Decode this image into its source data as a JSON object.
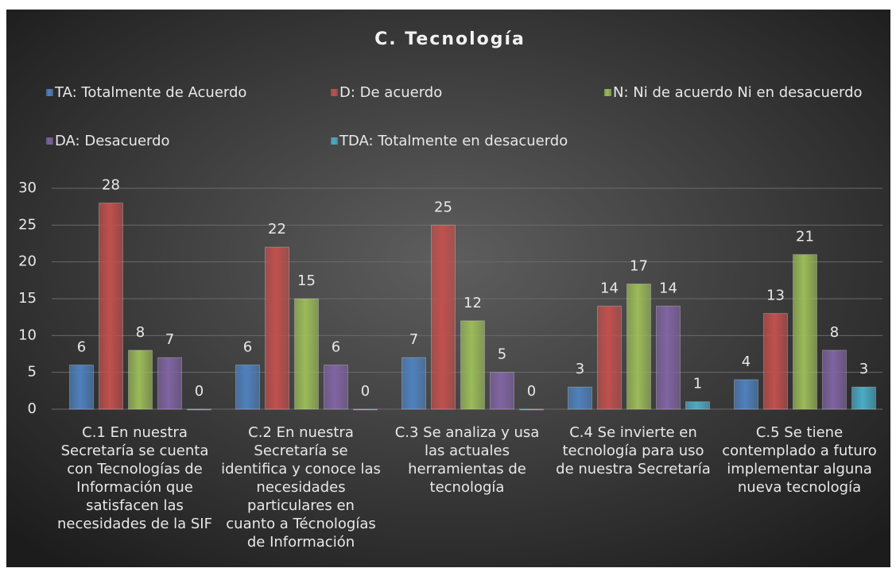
{
  "chart_data": {
    "type": "bar",
    "title": "C. Tecnología",
    "categories": [
      [
        "C.1 En nuestra",
        "Secretaría se cuenta",
        "con Tecnologías de",
        "Información que",
        "satisfacen las",
        "necesidades de la SIF"
      ],
      [
        "C.2 En nuestra",
        "Secretaría se",
        "identifica y conoce las",
        "necesidades",
        "particulares en",
        "cuanto a Técnologías",
        "de Información"
      ],
      [
        "C.3 Se analiza y usa",
        "las actuales",
        "herramientas de",
        "tecnología"
      ],
      [
        "C.4 Se invierte en",
        "tecnología para uso",
        "de nuestra Secretaría"
      ],
      [
        "C.5 Se tiene",
        "contemplado a futuro",
        "implementar alguna",
        "nueva tecnología"
      ]
    ],
    "series": [
      {
        "name": "TA: Totalmente de Acuerdo",
        "color": "#4f81bd",
        "values": [
          6,
          6,
          7,
          3,
          4
        ]
      },
      {
        "name": "D: De acuerdo",
        "color": "#c0504d",
        "values": [
          28,
          22,
          25,
          14,
          13
        ]
      },
      {
        "name": "N: Ni de acuerdo Ni en desacuerdo",
        "color": "#9bbb59",
        "values": [
          8,
          15,
          12,
          17,
          21
        ]
      },
      {
        "name": "DA: Desacuerdo",
        "color": "#8064a2",
        "values": [
          7,
          6,
          5,
          14,
          8
        ]
      },
      {
        "name": "TDA: Totalmente en desacuerdo",
        "color": "#4bacc6",
        "values": [
          0,
          0,
          0,
          1,
          3
        ]
      }
    ],
    "ylim": [
      0,
      30
    ],
    "yticks": [
      0,
      5,
      10,
      15,
      20,
      25,
      30
    ],
    "grid": true,
    "legend": "top"
  }
}
